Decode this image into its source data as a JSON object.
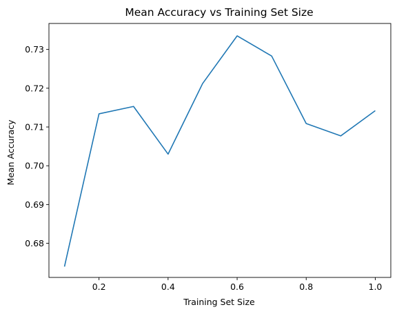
{
  "chart_data": {
    "type": "line",
    "title": "Mean Accuracy vs Training Set Size",
    "xlabel": "Training Set Size",
    "ylabel": "Mean Accuracy",
    "xlim": [
      0.055,
      1.045
    ],
    "ylim": [
      0.6712,
      0.7367
    ],
    "xticks": [
      0.2,
      0.4,
      0.6,
      0.8,
      1.0
    ],
    "xtick_labels": [
      "0.2",
      "0.4",
      "0.6",
      "0.8",
      "1.0"
    ],
    "yticks": [
      0.68,
      0.69,
      0.7,
      0.71,
      0.72,
      0.73
    ],
    "ytick_labels": [
      "0.68",
      "0.69",
      "0.70",
      "0.71",
      "0.72",
      "0.73"
    ],
    "grid": false,
    "series": [
      {
        "color": "#1f77b4",
        "x": [
          0.1,
          0.2,
          0.3,
          0.4,
          0.5,
          0.6,
          0.7,
          0.8,
          0.9,
          1.0
        ],
        "y": [
          0.674,
          0.7134,
          0.7153,
          0.703,
          0.7212,
          0.7335,
          0.7283,
          0.7109,
          0.7077,
          0.7142
        ]
      }
    ]
  }
}
